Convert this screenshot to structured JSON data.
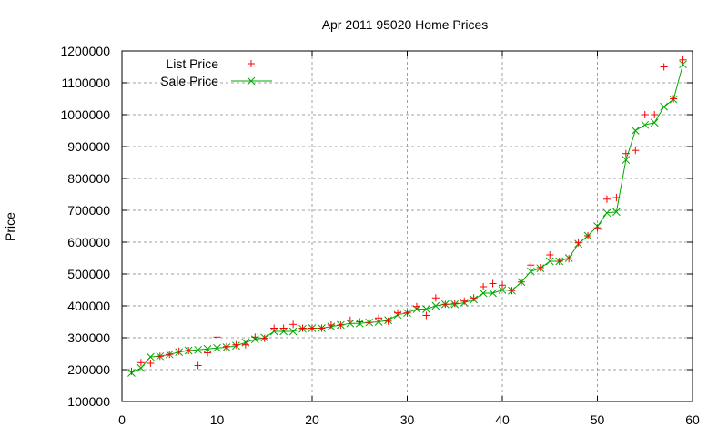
{
  "chart_data": {
    "type": "line",
    "title": "Apr 2011 95020 Home Prices",
    "xlabel": "",
    "ylabel": "Price",
    "xlim": [
      0,
      60
    ],
    "ylim": [
      100000,
      1200000
    ],
    "xticks": [
      0,
      10,
      20,
      30,
      40,
      50,
      60
    ],
    "yticks": [
      100000,
      200000,
      300000,
      400000,
      500000,
      600000,
      700000,
      800000,
      900000,
      1000000,
      1100000,
      1200000
    ],
    "grid": true,
    "legend_position": "top-left",
    "x": [
      1,
      2,
      3,
      4,
      5,
      6,
      7,
      8,
      9,
      10,
      11,
      12,
      13,
      14,
      15,
      16,
      17,
      18,
      19,
      20,
      21,
      22,
      23,
      24,
      25,
      26,
      27,
      28,
      29,
      30,
      31,
      32,
      33,
      34,
      35,
      36,
      37,
      38,
      39,
      40,
      41,
      42,
      43,
      44,
      45,
      46,
      47,
      48,
      49,
      50,
      51,
      52,
      53,
      54,
      55,
      56,
      57,
      58,
      59
    ],
    "series": [
      {
        "name": "List Price",
        "style": "points",
        "marker": "+",
        "color": "#ff0000",
        "values": [
          195000,
          222000,
          220000,
          242000,
          248000,
          258000,
          260000,
          213000,
          253000,
          302000,
          272000,
          278000,
          278000,
          302000,
          298000,
          330000,
          330000,
          342000,
          330000,
          330000,
          330000,
          340000,
          340000,
          355000,
          350000,
          348000,
          362000,
          352000,
          378000,
          378000,
          398000,
          370000,
          425000,
          405000,
          408000,
          415000,
          425000,
          460000,
          470000,
          465000,
          448000,
          475000,
          528000,
          520000,
          560000,
          540000,
          548000,
          598000,
          620000,
          645000,
          735000,
          740000,
          878000,
          888000,
          1000000,
          1000000,
          1150000,
          1050000,
          1172000
        ]
      },
      {
        "name": "Sale Price",
        "style": "linespoints",
        "marker": "x",
        "color": "#00aa00",
        "values": [
          190000,
          205000,
          240000,
          242000,
          248000,
          255000,
          260000,
          262000,
          265000,
          268000,
          270000,
          275000,
          285000,
          295000,
          300000,
          320000,
          320000,
          320000,
          328000,
          330000,
          330000,
          335000,
          340000,
          345000,
          345000,
          348000,
          350000,
          355000,
          372000,
          378000,
          390000,
          390000,
          400000,
          405000,
          405000,
          410000,
          420000,
          440000,
          440000,
          450000,
          448000,
          475000,
          508000,
          518000,
          540000,
          540000,
          550000,
          595000,
          620000,
          650000,
          692000,
          695000,
          858000,
          950000,
          968000,
          975000,
          1025000,
          1048000,
          1158000
        ]
      }
    ]
  },
  "legend": {
    "items": [
      {
        "label": "List Price",
        "color": "#ff0000",
        "marker": "+"
      },
      {
        "label": "Sale Price",
        "color": "#00aa00",
        "marker": "x"
      }
    ]
  },
  "colors": {
    "grid": "#a0a0a0",
    "axis": "#000000",
    "list": "#ff0000",
    "sale": "#00aa00"
  }
}
